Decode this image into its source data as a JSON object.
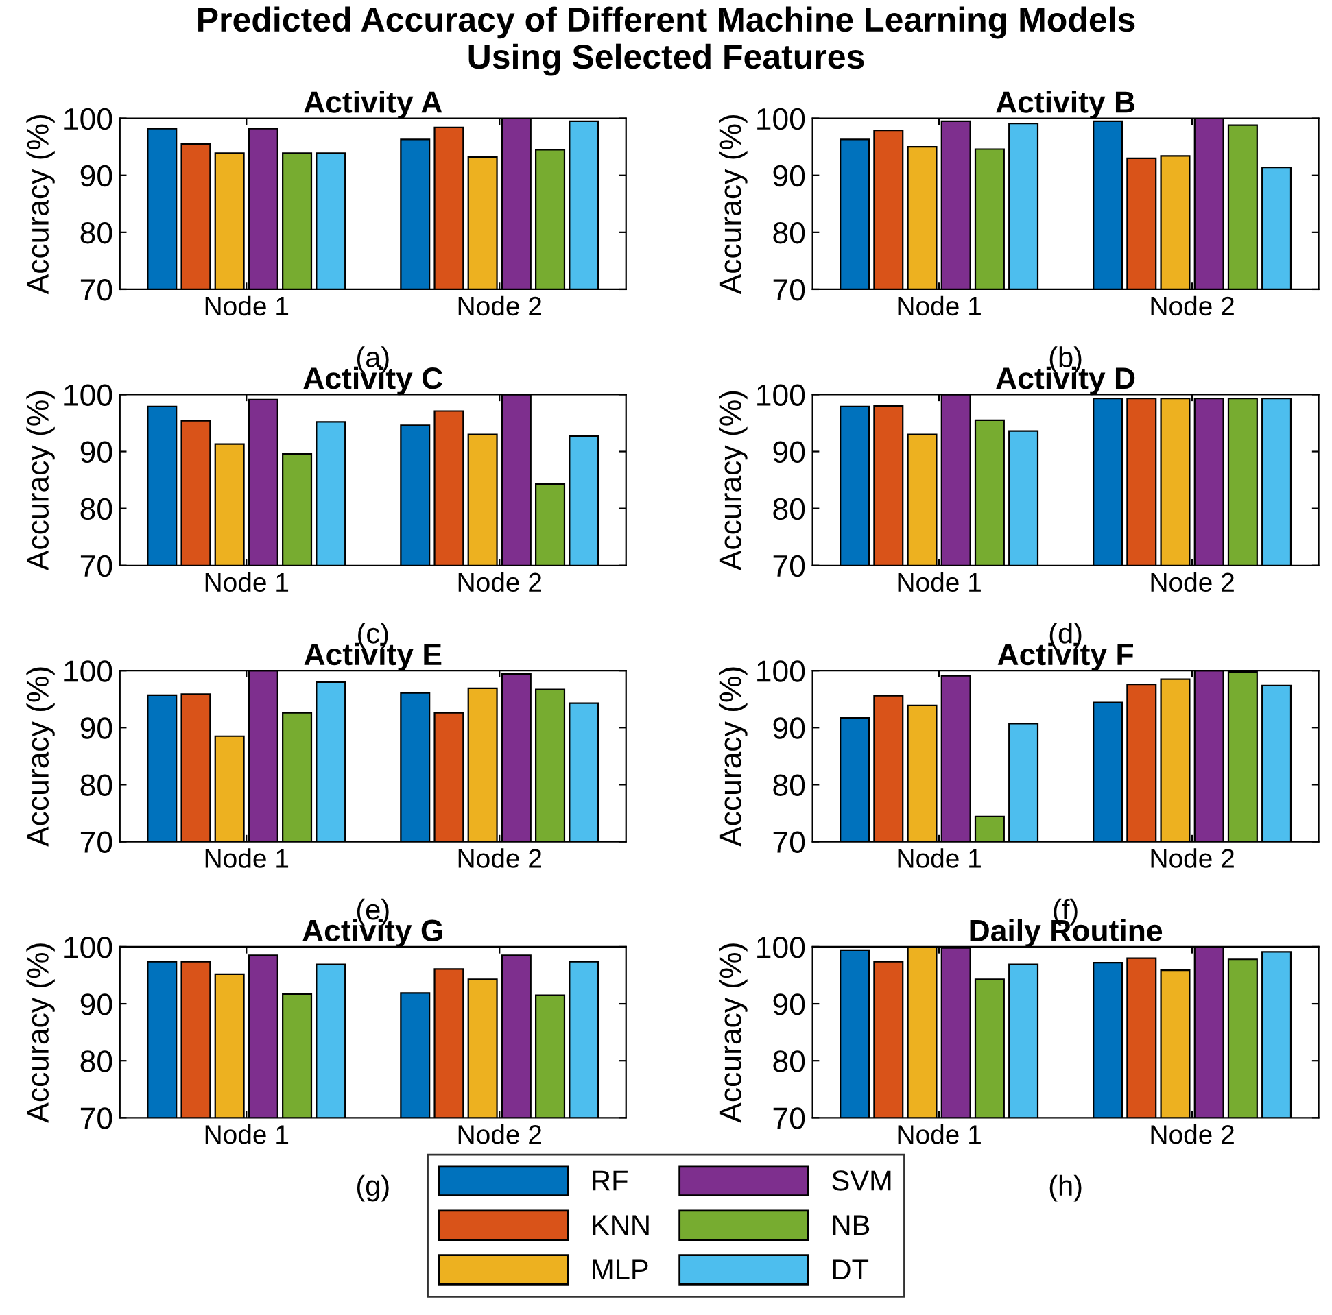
{
  "chart_data": [
    {
      "type": "bar",
      "title": "Activity A",
      "ylabel": "Accuracy (%)",
      "annotations": [
        "Predicted Accuracy of Different Machine Learning Models\nUsing Selected Features",
        "(a)"
      ],
      "categories": [
        "Node 1",
        "Node 2"
      ],
      "ylim": [
        70,
        100
      ],
      "yticks": [
        70,
        80,
        90,
        100
      ],
      "legend": "bottom",
      "series": [
        {
          "name": "RF",
          "color": "#0072bd",
          "values": [
            98.2,
            96.3
          ]
        },
        {
          "name": "KNN",
          "color": "#d95319",
          "values": [
            95.5,
            98.4
          ]
        },
        {
          "name": "MLP",
          "color": "#edb120",
          "values": [
            93.9,
            93.2
          ]
        },
        {
          "name": "SVM",
          "color": "#7e2f8e",
          "values": [
            98.2,
            100
          ]
        },
        {
          "name": "NB",
          "color": "#77ac30",
          "values": [
            93.9,
            94.5
          ]
        },
        {
          "name": "DT",
          "color": "#4dbeee",
          "values": [
            93.9,
            99.5
          ]
        }
      ]
    },
    {
      "type": "bar",
      "title": "Activity B",
      "ylabel": "Accuracy (%)",
      "annotations": [
        "(b)"
      ],
      "categories": [
        "Node 1",
        "Node 2"
      ],
      "ylim": [
        70,
        100
      ],
      "yticks": [
        70,
        80,
        90,
        100
      ],
      "series": [
        {
          "color": "#0072bd",
          "values": [
            96.3,
            99.5
          ]
        },
        {
          "color": "#d95319",
          "values": [
            97.9,
            93.0
          ]
        },
        {
          "color": "#edb120",
          "values": [
            95.0,
            93.4
          ]
        },
        {
          "color": "#7e2f8e",
          "values": [
            99.5,
            100
          ]
        },
        {
          "color": "#77ac30",
          "values": [
            94.6,
            98.8
          ]
        },
        {
          "color": "#4dbeee",
          "values": [
            99.1,
            91.4
          ]
        }
      ]
    },
    {
      "type": "bar",
      "title": "Activity C",
      "ylabel": "Accuracy (%)",
      "annotations": [
        "(c)"
      ],
      "categories": [
        "Node 1",
        "Node 2"
      ],
      "ylim": [
        70,
        100
      ],
      "yticks": [
        70,
        80,
        90,
        100
      ],
      "series": [
        {
          "color": "#0072bd",
          "values": [
            97.9,
            94.6
          ]
        },
        {
          "color": "#d95319",
          "values": [
            95.4,
            97.1
          ]
        },
        {
          "color": "#edb120",
          "values": [
            91.3,
            93.0
          ]
        },
        {
          "color": "#7e2f8e",
          "values": [
            99.1,
            100
          ]
        },
        {
          "color": "#77ac30",
          "values": [
            89.6,
            84.3
          ]
        },
        {
          "color": "#4dbeee",
          "values": [
            95.2,
            92.7
          ]
        }
      ]
    },
    {
      "type": "bar",
      "title": "Activity D",
      "ylabel": "Accuracy (%)",
      "annotations": [
        "(d)"
      ],
      "categories": [
        "Node 1",
        "Node 2"
      ],
      "ylim": [
        70,
        100
      ],
      "yticks": [
        70,
        80,
        90,
        100
      ],
      "series": [
        {
          "color": "#0072bd",
          "values": [
            97.9,
            99.3
          ]
        },
        {
          "color": "#d95319",
          "values": [
            98.0,
            99.3
          ]
        },
        {
          "color": "#edb120",
          "values": [
            93.0,
            99.3
          ]
        },
        {
          "color": "#7e2f8e",
          "values": [
            100,
            99.3
          ]
        },
        {
          "color": "#77ac30",
          "values": [
            95.5,
            99.3
          ]
        },
        {
          "color": "#4dbeee",
          "values": [
            93.6,
            99.3
          ]
        }
      ]
    },
    {
      "type": "bar",
      "title": "Activity E",
      "ylabel": "Accuracy (%)",
      "annotations": [
        "(e)"
      ],
      "categories": [
        "Node 1",
        "Node 2"
      ],
      "ylim": [
        70,
        100
      ],
      "yticks": [
        70,
        80,
        90,
        100
      ],
      "series": [
        {
          "color": "#0072bd",
          "values": [
            95.7,
            96.1
          ]
        },
        {
          "color": "#d95319",
          "values": [
            95.9,
            92.6
          ]
        },
        {
          "color": "#edb120",
          "values": [
            88.5,
            96.9
          ]
        },
        {
          "color": "#7e2f8e",
          "values": [
            100,
            99.4
          ]
        },
        {
          "color": "#77ac30",
          "values": [
            92.6,
            96.7
          ]
        },
        {
          "color": "#4dbeee",
          "values": [
            98.0,
            94.3
          ]
        }
      ]
    },
    {
      "type": "bar",
      "title": "Activity F",
      "ylabel": "Accuracy (%)",
      "annotations": [
        "(f)"
      ],
      "categories": [
        "Node 1",
        "Node 2"
      ],
      "ylim": [
        70,
        100
      ],
      "yticks": [
        70,
        80,
        90,
        100
      ],
      "series": [
        {
          "color": "#0072bd",
          "values": [
            91.7,
            94.4
          ]
        },
        {
          "color": "#d95319",
          "values": [
            95.6,
            97.6
          ]
        },
        {
          "color": "#edb120",
          "values": [
            93.9,
            98.5
          ]
        },
        {
          "color": "#7e2f8e",
          "values": [
            99.1,
            100
          ]
        },
        {
          "color": "#77ac30",
          "values": [
            74.4,
            99.8
          ]
        },
        {
          "color": "#4dbeee",
          "values": [
            90.7,
            97.4
          ]
        }
      ]
    },
    {
      "type": "bar",
      "title": "Activity G",
      "ylabel": "Accuracy (%)",
      "annotations": [
        "(g)"
      ],
      "categories": [
        "Node 1",
        "Node 2"
      ],
      "ylim": [
        70,
        100
      ],
      "yticks": [
        70,
        80,
        90,
        100
      ],
      "series": [
        {
          "color": "#0072bd",
          "values": [
            97.4,
            91.9
          ]
        },
        {
          "color": "#d95319",
          "values": [
            97.4,
            96.1
          ]
        },
        {
          "color": "#edb120",
          "values": [
            95.2,
            94.3
          ]
        },
        {
          "color": "#7e2f8e",
          "values": [
            98.5,
            98.5
          ]
        },
        {
          "color": "#77ac30",
          "values": [
            91.7,
            91.5
          ]
        },
        {
          "color": "#4dbeee",
          "values": [
            96.9,
            97.4
          ]
        }
      ]
    },
    {
      "type": "bar",
      "title": "Daily Routine",
      "ylabel": "Accuracy (%)",
      "annotations": [
        "(h)"
      ],
      "categories": [
        "Node 1",
        "Node 2"
      ],
      "ylim": [
        70,
        100
      ],
      "yticks": [
        70,
        80,
        90,
        100
      ],
      "series": [
        {
          "color": "#0072bd",
          "values": [
            99.4,
            97.2
          ]
        },
        {
          "color": "#d95319",
          "values": [
            97.4,
            98.0
          ]
        },
        {
          "color": "#edb120",
          "values": [
            100,
            95.9
          ]
        },
        {
          "color": "#7e2f8e",
          "values": [
            99.8,
            100
          ]
        },
        {
          "color": "#77ac30",
          "values": [
            94.3,
            97.8
          ]
        },
        {
          "color": "#4dbeee",
          "values": [
            96.9,
            99.1
          ]
        }
      ]
    }
  ]
}
